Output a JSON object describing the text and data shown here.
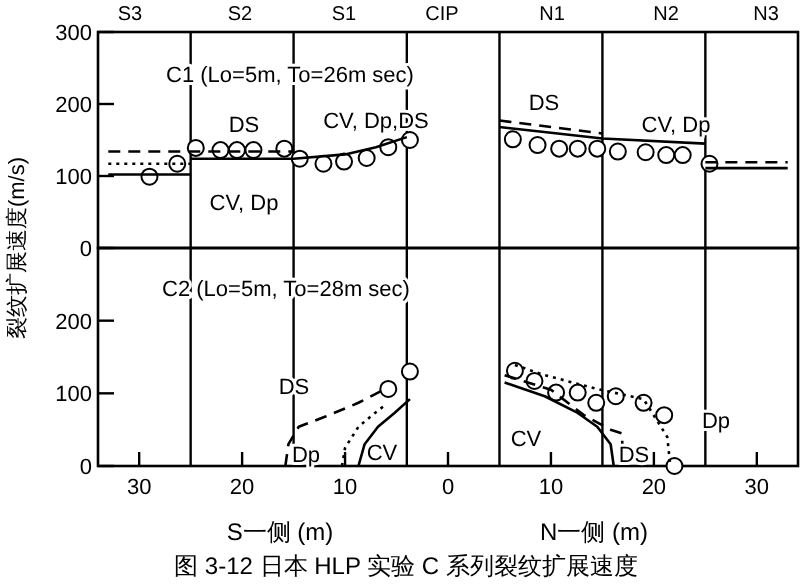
{
  "chart_data": [
    {
      "type": "scatter",
      "ylabel": "裂纹扩展速度(m/s)",
      "xlim": [
        -34,
        34
      ],
      "ylim": [
        0,
        300
      ],
      "yticks": [
        0,
        100,
        200,
        300
      ],
      "tick_labels": "y",
      "ref_lines": [
        {
          "axis": "x",
          "value": -25,
          "label": null
        },
        {
          "axis": "x",
          "value": -15,
          "label": null
        },
        {
          "axis": "x",
          "value": -4,
          "label": null
        },
        {
          "axis": "x",
          "value": 5,
          "label": null
        },
        {
          "axis": "x",
          "value": 15,
          "label": null
        },
        {
          "axis": "x",
          "value": 25,
          "label": null
        }
      ],
      "series": [
        {
          "type": "scatter",
          "marker": "circle",
          "color": "#000000",
          "x": [
            -29.0,
            -26.3,
            -24.5,
            -22.1,
            -20.5,
            -18.9,
            -15.9,
            -14.4,
            -12.1,
            -10.1,
            -7.9,
            -5.8,
            -3.7,
            6.3,
            8.7,
            10.8,
            12.6,
            14.5,
            16.5,
            19.2,
            21.2,
            22.8,
            25.4
          ],
          "values": [
            99,
            117,
            139,
            136,
            136,
            136,
            138,
            124,
            117,
            120,
            125,
            140,
            150,
            151,
            143,
            138,
            138,
            138,
            134,
            133,
            129,
            129,
            117
          ]
        },
        {
          "type": "line",
          "line_style": "solid",
          "color": "#000000",
          "x": [
            -33,
            -25
          ],
          "values": [
            102,
            102
          ]
        },
        {
          "type": "line",
          "line_style": "dotted",
          "color": "#000000",
          "x": [
            -33,
            -25
          ],
          "values": [
            117,
            117
          ]
        },
        {
          "type": "line",
          "line_style": "dashed",
          "color": "#000000",
          "x": [
            -33,
            -15
          ],
          "values": [
            134,
            134
          ]
        },
        {
          "type": "line",
          "line_style": "solid",
          "color": "#000000",
          "x": [
            -25,
            -15,
            -10,
            -7,
            -4
          ],
          "values": [
            124,
            124,
            130,
            140,
            154
          ]
        },
        {
          "type": "line",
          "line_style": "dashed",
          "color": "#000000",
          "x": [
            5,
            10,
            15
          ],
          "values": [
            177,
            168,
            159
          ]
        },
        {
          "type": "line",
          "line_style": "solid",
          "color": "#000000",
          "x": [
            5,
            10,
            15,
            25
          ],
          "values": [
            168,
            160,
            152,
            145
          ]
        },
        {
          "type": "line",
          "line_style": "solid",
          "color": "#000000",
          "x": [
            25,
            33
          ],
          "values": [
            111,
            111
          ]
        },
        {
          "type": "line",
          "line_style": "dashed",
          "color": "#000000",
          "x": [
            25,
            33
          ],
          "values": [
            119,
            119
          ]
        }
      ],
      "annotations": [
        "S3",
        "S2",
        "S1",
        "CIP",
        "N1",
        "N2",
        "N3",
        "C1 (Lo=5m, To=26m sec)",
        "DS",
        "CV, Dp",
        "CV, Dp,DS",
        "DS",
        "CV, Dp"
      ]
    },
    {
      "type": "scatter",
      "xlabel": "S一侧 (m)",
      "xlim": [
        -34,
        34
      ],
      "ylim": [
        0,
        300
      ],
      "yticks": [
        0,
        100,
        200
      ],
      "xticks": [
        {
          "value": -30,
          "label": "30"
        },
        {
          "value": -20,
          "label": "20"
        },
        {
          "value": -10,
          "label": "10"
        },
        {
          "value": 0,
          "label": "0"
        },
        {
          "value": 10,
          "label": "10"
        },
        {
          "value": 20,
          "label": "20"
        },
        {
          "value": 30,
          "label": "30"
        }
      ],
      "ref_lines": [
        {
          "axis": "x",
          "value": -25,
          "label": null
        },
        {
          "axis": "x",
          "value": -15,
          "label": null
        },
        {
          "axis": "x",
          "value": -4,
          "label": null
        },
        {
          "axis": "x",
          "value": 5,
          "label": null
        },
        {
          "axis": "x",
          "value": 15,
          "label": null
        },
        {
          "axis": "x",
          "value": 25,
          "label": null
        }
      ],
      "series": [
        {
          "type": "scatter",
          "marker": "circle",
          "color": "#000000",
          "x": [
            -5.8,
            -3.7,
            6.5,
            8.4,
            10.5,
            12.6,
            14.4,
            16.3,
            19.0,
            21.0,
            22.0
          ],
          "values": [
            106,
            130,
            131,
            117,
            101,
            101,
            87,
            96,
            87,
            70,
            0
          ]
        },
        {
          "type": "line",
          "line_style": "solid",
          "color": "#000000",
          "x": [
            -8.7,
            -8.1,
            -6.8,
            -5.2,
            -3.7
          ],
          "values": [
            0,
            30,
            54,
            73,
            92
          ]
        },
        {
          "type": "line",
          "line_style": "dotted",
          "color": "#000000",
          "x": [
            -10.3,
            -10,
            -8.7,
            -7.1,
            -6.0
          ],
          "values": [
            0,
            25,
            54,
            73,
            85
          ]
        },
        {
          "type": "line",
          "line_style": "dashed",
          "color": "#000000",
          "x": [
            -15.8,
            -15.5,
            -14.5,
            -11.9,
            -8.7,
            -6.1
          ],
          "values": [
            0,
            30,
            54,
            68,
            87,
            106
          ]
        },
        {
          "type": "line",
          "line_style": "solid",
          "color": "#000000",
          "x": [
            5.5,
            9.4,
            12.6,
            14.5,
            15.8,
            16.1
          ],
          "values": [
            115,
            96,
            73,
            54,
            30,
            0
          ]
        },
        {
          "type": "line",
          "line_style": "dashed",
          "color": "#000000",
          "x": [
            5.5,
            10,
            13.2,
            15.8,
            16.9,
            17.0
          ],
          "values": [
            125,
            105,
            70,
            50,
            45,
            0
          ]
        },
        {
          "type": "line",
          "line_style": "dotted",
          "color": "#000000",
          "x": [
            6.5,
            9.4,
            14.5,
            19.0,
            21.3,
            21.6
          ],
          "values": [
            139,
            125,
            106,
            92,
            40,
            0
          ]
        }
      ],
      "annotations": [
        "C2 (Lo=5m, To=28m sec)",
        "DS",
        "Dp",
        "CV",
        "CV",
        "DS",
        "Dp",
        "N一侧 (m)",
        "图 3-12 日本 HLP 实验 C 系列裂纹扩展速度"
      ]
    }
  ]
}
